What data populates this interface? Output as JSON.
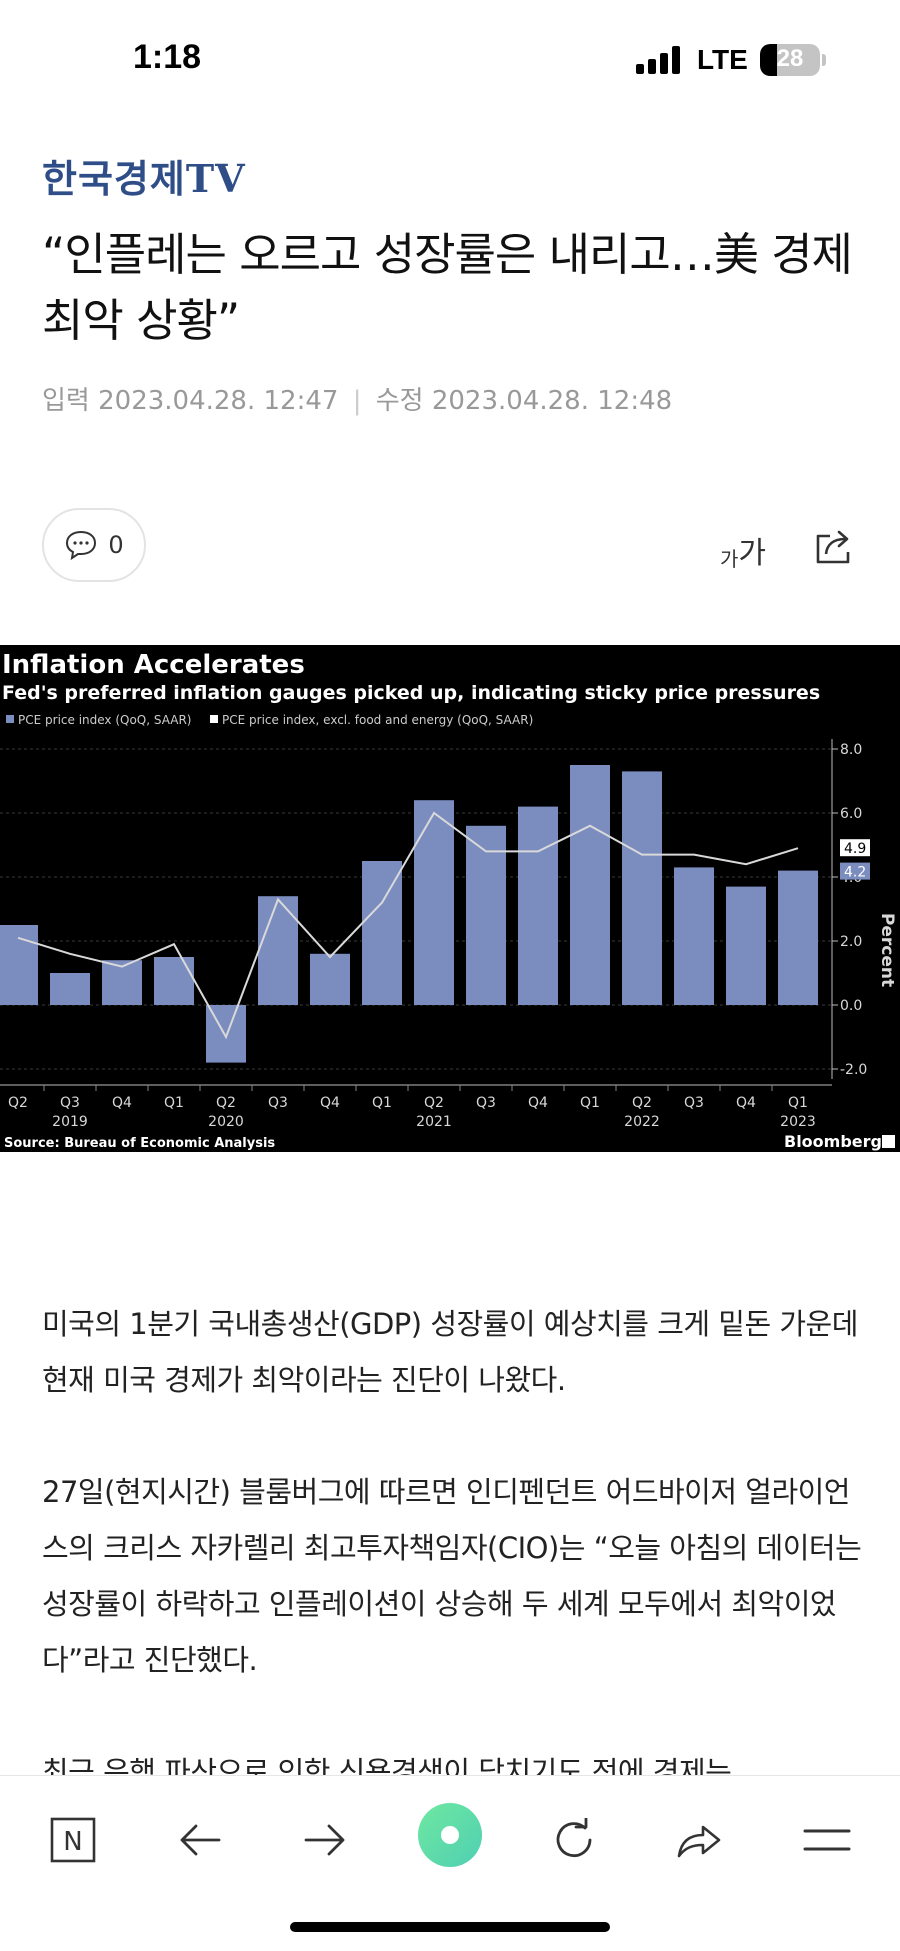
{
  "status_bar": {
    "time": "1:18",
    "network": "LTE",
    "battery_percent": "28",
    "battery_level": 0.28
  },
  "article": {
    "publisher": "한국경제TV",
    "headline": "“인플레는 오르고 성장률은 내리고…美 경제 최악 상황”",
    "input_label": "입력",
    "input_date": "2023.04.28. 12:47",
    "edit_label": "수정",
    "edit_date": "2023.04.28. 12:48",
    "comment_count": "0",
    "font_small": "가",
    "font_big": "가",
    "paragraphs": [
      "미국의 1분기 국내총생산(GDP) 성장률이 예상치를 크게 밑돈 가운데 현재 미국 경제가 최악이라는 진단이 나왔다.",
      "27일(현지시간) 블룸버그에 따르면 인디펜던트 어드바이저 얼라이언스의 크리스 자카렐리 최고투자책임자(CIO)는 “오늘 아침의 데이터는 성장률이 하락하고 인플레이션이 상승해 두 세계 모두에서 최악이었다”라고 진단했다.",
      "최근 은행 파산으로 인한 신용경색이 닥치기도 전에 경제는"
    ]
  },
  "chart_data": {
    "type": "bar",
    "title": "Inflation Accelerates",
    "subtitle": "Fed's preferred inflation gauges picked up, indicating sticky price pressures",
    "ylabel": "Percent",
    "ylim": [
      -2.0,
      8.0
    ],
    "yticks": [
      "8.0",
      "6.0",
      "4.0",
      "2.0",
      "0.0",
      "-2.0"
    ],
    "quarters": [
      "Q2",
      "Q3",
      "Q4",
      "Q1",
      "Q2",
      "Q3",
      "Q4",
      "Q1",
      "Q2",
      "Q3",
      "Q4",
      "Q1",
      "Q2",
      "Q3",
      "Q4",
      "Q1"
    ],
    "years": [
      {
        "label": "2019",
        "index": 1
      },
      {
        "label": "2020",
        "index": 4
      },
      {
        "label": "2021",
        "index": 8
      },
      {
        "label": "2022",
        "index": 12
      },
      {
        "label": "2023",
        "index": 15
      }
    ],
    "series": [
      {
        "name": "PCE price index (QoQ, SAAR)",
        "type": "bar",
        "color": "#7b8cbf",
        "values": [
          2.5,
          1.0,
          1.4,
          1.5,
          -1.8,
          3.4,
          1.6,
          4.5,
          6.4,
          5.6,
          6.2,
          7.5,
          7.3,
          4.3,
          3.7,
          4.2
        ]
      },
      {
        "name": "PCE price index, excl. food and energy (QoQ, SAAR)",
        "type": "line",
        "color": "#d9d9d9",
        "values": [
          2.1,
          1.6,
          1.2,
          1.9,
          -1.0,
          3.3,
          1.5,
          3.2,
          6.0,
          4.8,
          4.8,
          5.6,
          4.7,
          4.7,
          4.4,
          4.9
        ]
      }
    ],
    "last_labels": {
      "line": "4.9",
      "bar": "4.2"
    },
    "source": "Source: Bureau of Economic Analysis",
    "brand": "Bloomberg",
    "grid": true,
    "legend_position": "top-left"
  },
  "colors": {
    "publisher": "#2f4e88",
    "chart_bar": "#7b8cbf",
    "chart_line": "#d9d9d9",
    "browser_accent": "#5fe0a2"
  },
  "toolbar": {
    "items": [
      "naver-home-icon",
      "back-arrow-icon",
      "forward-arrow-icon",
      "green-dot-icon",
      "refresh-icon",
      "share-arrow-icon",
      "menu-icon"
    ],
    "home_letter": "N"
  }
}
